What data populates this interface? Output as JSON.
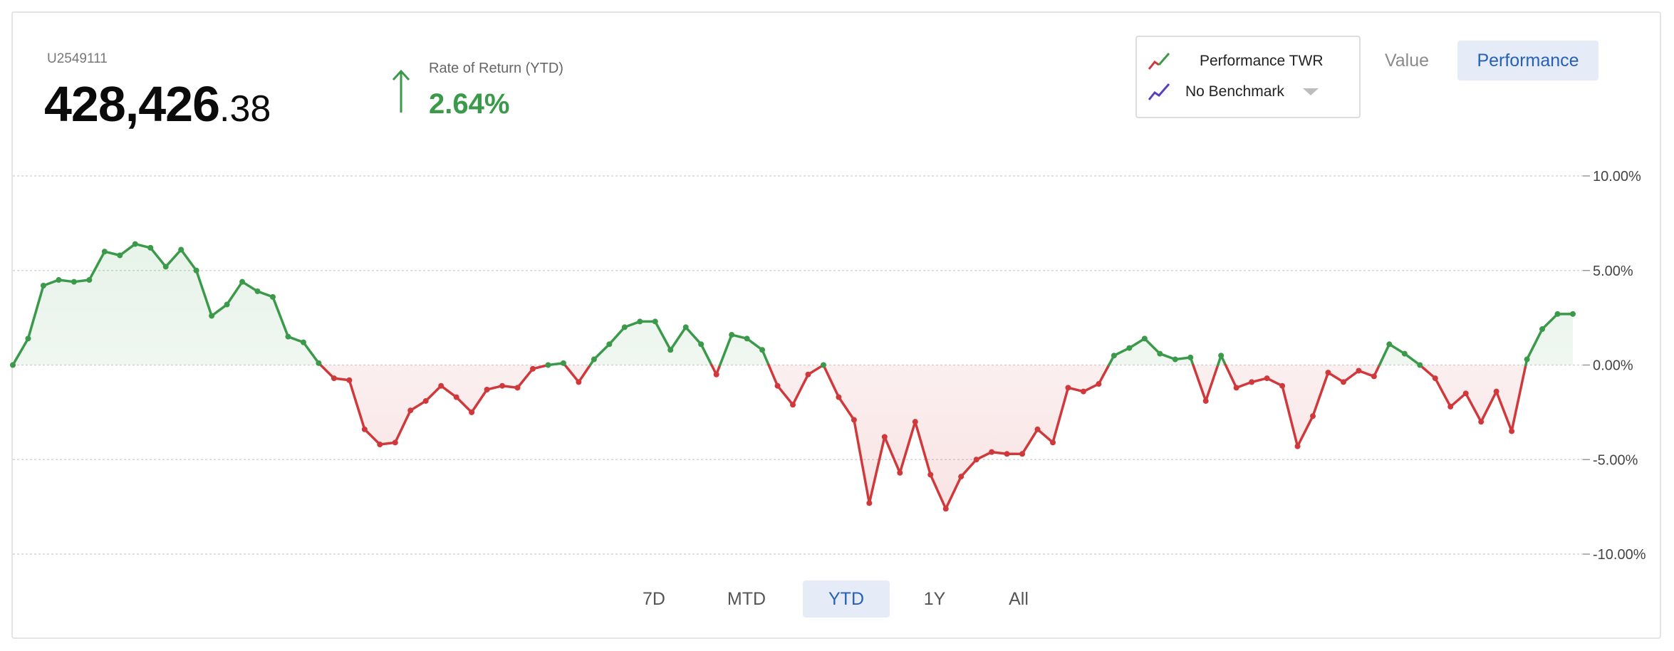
{
  "account": {
    "id": "U2549111",
    "value_main": "428,426",
    "value_cents": ".38"
  },
  "rate_of_return": {
    "label": "Rate of Return (YTD)",
    "value": "2.64%",
    "direction": "up",
    "color": "#3a9a4a"
  },
  "legend": {
    "series_label": "Performance TWR",
    "benchmark_label": "No Benchmark",
    "series_icon": "red-green-line-icon",
    "benchmark_icon": "purple-line-icon",
    "dropdown_icon": "caret-down-icon"
  },
  "view_toggle": {
    "value_label": "Value",
    "performance_label": "Performance",
    "selected": "Performance"
  },
  "ranges": [
    {
      "label": "7D",
      "active": false
    },
    {
      "label": "MTD",
      "active": false
    },
    {
      "label": "YTD",
      "active": true
    },
    {
      "label": "1Y",
      "active": false
    },
    {
      "label": "All",
      "active": false
    }
  ],
  "chart_data": {
    "type": "line",
    "y_tick_labels": [
      "10.00%",
      "5.00%",
      "0.00%",
      "-5.00%",
      "-10.00%"
    ],
    "y_ticks": [
      10,
      5,
      0,
      -5,
      -10
    ],
    "ylim": [
      -10,
      10
    ],
    "grid": true,
    "positive_color": "#3a9a4a",
    "negative_color": "#d0393b",
    "series": [
      {
        "values": [
          0.0,
          1.4,
          4.2,
          4.5,
          4.4,
          4.5,
          6.0,
          5.8,
          6.4,
          6.2,
          5.2,
          6.1,
          5.0,
          2.6,
          3.2,
          4.4,
          3.9,
          3.6,
          1.5,
          1.2,
          0.1,
          -0.7,
          -0.8,
          -3.4,
          -4.2,
          -4.1,
          -2.4,
          -1.9,
          -1.1,
          -1.7,
          -2.5,
          -1.3,
          -1.1,
          -1.2,
          -0.2,
          0.0,
          0.1,
          -0.9,
          0.3,
          1.1,
          2.0,
          2.3,
          2.3,
          0.8,
          2.0,
          1.1,
          -0.5,
          1.6,
          1.4,
          0.8,
          -1.1,
          -2.1,
          -0.5,
          0.0,
          -1.7,
          -2.9,
          -7.3,
          -3.8,
          -5.7,
          -3.0,
          -5.8,
          -7.6,
          -5.9,
          -5.0,
          -4.6,
          -4.7,
          -4.7,
          -3.4,
          -4.1,
          -1.2,
          -1.4,
          -1.0,
          0.5,
          0.9,
          1.4,
          0.6,
          0.3,
          0.4,
          -1.9,
          0.5,
          -1.2,
          -0.9,
          -0.7,
          -1.1,
          -4.3,
          -2.7,
          -0.4,
          -0.9,
          -0.3,
          -0.6,
          1.1,
          0.6,
          0.0,
          -0.7,
          -2.2,
          -1.5,
          -3.0,
          -1.4,
          -3.5,
          0.3,
          1.9,
          2.7,
          2.7
        ]
      }
    ]
  }
}
